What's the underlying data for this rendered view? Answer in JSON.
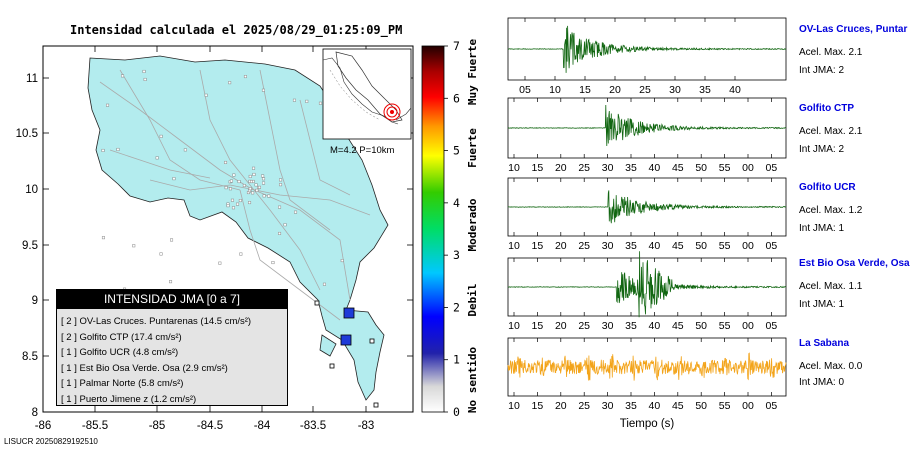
{
  "map": {
    "title": "Intensidad calculada el 2025/08/29_01:25:09_PM",
    "footer_id": "LISUCR 20250829192510",
    "x_ticks": [
      "-86",
      "-85.5",
      "-85",
      "-84.5",
      "-84",
      "-83.5",
      "-83"
    ],
    "y_ticks": [
      "11",
      "10.5",
      "10",
      "9.5",
      "9",
      "8.5",
      "8"
    ],
    "inset_label": "M=4.2 P=10km",
    "land_color": "#b3ecee"
  },
  "colorbar": {
    "ticks": [
      "0",
      "1",
      "2",
      "3",
      "4",
      "5",
      "6",
      "7"
    ],
    "labels": [
      "No sentido",
      "Debil",
      "Moderado",
      "Fuerte",
      "Muy Fuerte"
    ]
  },
  "legend": {
    "title": "INTENSIDAD JMA [0 a 7]",
    "items": [
      "[ 2 ]  OV-Las Cruces. Puntarenas (14.5 cm/s²)",
      "[ 2 ]  Golfito CTP (17.4 cm/s²)",
      "[ 1 ]  Golfito UCR (4.8 cm/s²)",
      "[ 1 ]  Est Bio Osa Verde. Osa (2.9 cm/s²)",
      "[ 1 ]  Palmar Norte (5.8 cm/s²)",
      "[ 1 ]  Puerto Jimene z (1.2 cm/s²)"
    ]
  },
  "traces": [
    {
      "station": "OV-Las Cruces, Puntar",
      "acel": "Acel. Max. 2.1",
      "int": "Int JMA: 2",
      "color": "#116611",
      "ticks": [
        "05",
        "10",
        "15",
        "20",
        "25",
        "30",
        "35",
        "40"
      ],
      "burst_start": 0.2,
      "peak": 0.95
    },
    {
      "station": "Golfito CTP",
      "acel": "Acel. Max. 2.1",
      "int": "Int JMA: 2",
      "color": "#116611",
      "ticks": [
        "10",
        "15",
        "20",
        "25",
        "30",
        "35",
        "40",
        "45",
        "50",
        "55",
        "00",
        "05"
      ],
      "burst_start": 0.35,
      "peak": 0.85
    },
    {
      "station": "Golfito UCR",
      "acel": "Acel. Max. 1.2",
      "int": "Int JMA: 1",
      "color": "#116611",
      "ticks": [
        "10",
        "15",
        "20",
        "25",
        "30",
        "35",
        "40",
        "45",
        "50",
        "55",
        "00",
        "05"
      ],
      "burst_start": 0.36,
      "peak": 0.8
    },
    {
      "station": "Est Bio Osa Verde, Osa",
      "acel": "Acel. Max. 1.1",
      "int": "Int JMA: 1",
      "color": "#116611",
      "ticks": [
        "10",
        "15",
        "20",
        "25",
        "30",
        "35",
        "40",
        "45",
        "50",
        "55",
        "00",
        "05"
      ],
      "burst_start": 0.39,
      "peak": 0.75
    },
    {
      "station": "La Sabana",
      "acel": "Acel. Max. 0.0",
      "int": "Int JMA: 0",
      "color": "#f3a41a",
      "ticks": [
        "10",
        "15",
        "20",
        "25",
        "30",
        "35",
        "40",
        "45",
        "50",
        "55",
        "00",
        "05"
      ],
      "burst_start": -1,
      "peak": 0.5
    }
  ],
  "xlabel": "Tiempo (s)",
  "chart_data": {
    "type": "heatmap",
    "title": "Intensidad calculada el 2025/08/29_01:25:09_PM",
    "xlim": [
      -86,
      -82.6
    ],
    "ylim": [
      8,
      11.3
    ],
    "stations": [
      {
        "name": "OV-Las Cruces. Puntarenas",
        "jma": 2,
        "pga_cm_s2": 14.5
      },
      {
        "name": "Golfito CTP",
        "jma": 2,
        "pga_cm_s2": 17.4
      },
      {
        "name": "Golfito UCR",
        "jma": 1,
        "pga_cm_s2": 4.8
      },
      {
        "name": "Est Bio Osa Verde. Osa",
        "jma": 1,
        "pga_cm_s2": 2.9
      },
      {
        "name": "Palmar Norte",
        "jma": 1,
        "pga_cm_s2": 5.8
      },
      {
        "name": "Puerto Jimene z",
        "jma": 1,
        "pga_cm_s2": 1.2
      }
    ],
    "markers": [
      {
        "lon": -83.08,
        "lat": 8.89,
        "jma": 2
      },
      {
        "lon": -83.12,
        "lat": 8.64,
        "jma": 2
      }
    ],
    "magnitude": 4.2,
    "depth_km": 10,
    "colorbar_range": [
      0,
      7
    ]
  }
}
